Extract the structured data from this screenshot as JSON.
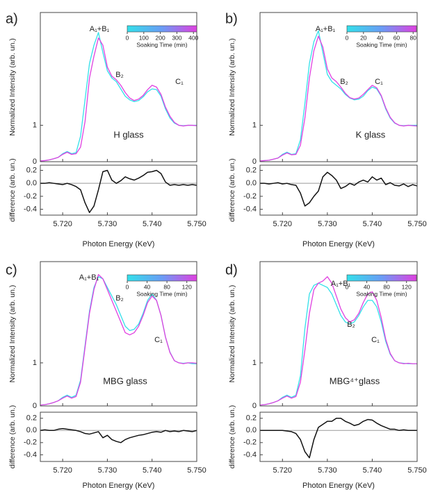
{
  "chart_data": [
    {
      "type": "line",
      "panel_label": "a)",
      "ylabel": "Normalized Intensity (arb. un.)",
      "sample_label": "H glass",
      "annotations": [
        "A₁+B₁",
        "B₂",
        "C₁"
      ],
      "x": [
        5.715,
        5.716,
        5.717,
        5.718,
        5.719,
        5.72,
        5.721,
        5.722,
        5.723,
        5.724,
        5.725,
        5.726,
        5.727,
        5.728,
        5.729,
        5.73,
        5.731,
        5.732,
        5.733,
        5.734,
        5.735,
        5.736,
        5.737,
        5.738,
        5.739,
        5.74,
        5.741,
        5.742,
        5.743,
        5.744,
        5.745,
        5.746,
        5.747,
        5.748,
        5.749,
        5.75
      ],
      "series": [
        {
          "color": "#33e0ea",
          "values": [
            0.02,
            0.03,
            0.05,
            0.08,
            0.12,
            0.22,
            0.28,
            0.22,
            0.25,
            0.7,
            1.7,
            2.7,
            3.2,
            3.55,
            3.0,
            2.5,
            2.3,
            2.2,
            2.0,
            1.8,
            1.7,
            1.65,
            1.68,
            1.78,
            1.92,
            2.0,
            1.98,
            1.8,
            1.45,
            1.2,
            1.06,
            1.0,
            0.99,
            1.0,
            1.0,
            1.0
          ]
        },
        {
          "color": "#e040e0",
          "values": [
            0.02,
            0.03,
            0.05,
            0.08,
            0.12,
            0.2,
            0.26,
            0.2,
            0.22,
            0.4,
            1.1,
            2.3,
            2.9,
            3.4,
            3.2,
            2.6,
            2.35,
            2.25,
            2.1,
            1.9,
            1.75,
            1.68,
            1.72,
            1.82,
            1.98,
            2.1,
            2.05,
            1.85,
            1.5,
            1.25,
            1.08,
            1.0,
            0.98,
            1.0,
            1.0,
            0.99
          ]
        }
      ],
      "xlim": [
        5.715,
        5.75
      ],
      "ylim": [
        0,
        4.1
      ],
      "yticks": [
        0,
        1
      ],
      "xticks": [
        5.72,
        5.73,
        5.74,
        5.75
      ],
      "colorbar": {
        "label": "Soaking Time (min)",
        "lim": [
          0,
          420
        ],
        "ticks": [
          0,
          100,
          200,
          300,
          400
        ],
        "colors": [
          "#33e0ea",
          "#6a9cf5",
          "#e040e0"
        ]
      }
    },
    {
      "type": "line",
      "ylabel": "difference (arb. un.)",
      "xlabel": "Photon Energy (KeV)",
      "color": "#111111",
      "hline": 0,
      "x": [
        5.715,
        5.716,
        5.717,
        5.718,
        5.719,
        5.72,
        5.721,
        5.722,
        5.723,
        5.724,
        5.725,
        5.726,
        5.727,
        5.728,
        5.729,
        5.73,
        5.731,
        5.732,
        5.733,
        5.734,
        5.735,
        5.736,
        5.737,
        5.738,
        5.739,
        5.74,
        5.741,
        5.742,
        5.743,
        5.744,
        5.745,
        5.746,
        5.747,
        5.748,
        5.749,
        5.75
      ],
      "values": [
        0,
        0,
        0.01,
        0,
        -0.01,
        -0.02,
        0,
        -0.02,
        -0.05,
        -0.1,
        -0.3,
        -0.45,
        -0.35,
        -0.1,
        0.18,
        0.2,
        0.05,
        0,
        0.04,
        0.1,
        0.07,
        0.05,
        0.08,
        0.12,
        0.17,
        0.18,
        0.2,
        0.15,
        0.02,
        -0.03,
        -0.02,
        -0.03,
        -0.02,
        -0.03,
        -0.02,
        -0.03
      ],
      "xlim": [
        5.715,
        5.75
      ],
      "ylim": [
        -0.49,
        0.28
      ],
      "yticks": [
        -0.4,
        -0.2,
        {
          "value": 0,
          "label": "0.0"
        },
        0.2
      ],
      "xticks": [
        {
          "value": 5.72,
          "label": "5.720"
        },
        {
          "value": 5.73,
          "label": "5.730"
        },
        {
          "value": 5.74,
          "label": "5.740"
        },
        {
          "value": 5.75,
          "label": "5.750"
        }
      ]
    },
    {
      "type": "line",
      "panel_label": "b)",
      "ylabel": "Normalized Intensity (arb. un.)",
      "sample_label": "K glass",
      "annotations": [
        "A₁+B₁",
        "B₂",
        "C₁"
      ],
      "x": [
        5.715,
        5.716,
        5.717,
        5.718,
        5.719,
        5.72,
        5.721,
        5.722,
        5.723,
        5.724,
        5.725,
        5.726,
        5.727,
        5.728,
        5.729,
        5.73,
        5.731,
        5.732,
        5.733,
        5.734,
        5.735,
        5.736,
        5.737,
        5.738,
        5.739,
        5.74,
        5.741,
        5.742,
        5.743,
        5.744,
        5.745,
        5.746,
        5.747,
        5.748,
        5.749,
        5.75
      ],
      "series": [
        {
          "color": "#33e0ea",
          "values": [
            0.02,
            0.03,
            0.04,
            0.07,
            0.1,
            0.2,
            0.26,
            0.2,
            0.22,
            0.6,
            1.6,
            2.7,
            3.3,
            3.6,
            3.0,
            2.4,
            2.2,
            2.1,
            2.0,
            1.85,
            1.75,
            1.7,
            1.72,
            1.8,
            1.95,
            2.05,
            2.0,
            1.8,
            1.45,
            1.2,
            1.06,
            1.0,
            0.99,
            1.0,
            1.0,
            1.0
          ]
        },
        {
          "color": "#e040e0",
          "values": [
            0.02,
            0.03,
            0.04,
            0.07,
            0.1,
            0.18,
            0.24,
            0.19,
            0.2,
            0.45,
            1.2,
            2.3,
            3.05,
            3.45,
            3.15,
            2.55,
            2.3,
            2.2,
            2.05,
            1.88,
            1.76,
            1.72,
            1.75,
            1.85,
            1.98,
            2.1,
            2.03,
            1.82,
            1.48,
            1.22,
            1.07,
            1.0,
            0.98,
            1.0,
            0.99,
            0.98
          ]
        }
      ],
      "xlim": [
        5.715,
        5.75
      ],
      "ylim": [
        0,
        4.1
      ],
      "yticks": [
        0,
        1
      ],
      "xticks": [
        5.72,
        5.73,
        5.74,
        5.75
      ],
      "colorbar": {
        "label": "Soaking Time (min)",
        "lim": [
          0,
          84
        ],
        "ticks": [
          0,
          20,
          40,
          60,
          80
        ],
        "colors": [
          "#33e0ea",
          "#6a9cf5",
          "#e040e0"
        ]
      }
    },
    {
      "type": "line",
      "ylabel": "difference (arb. un.)",
      "xlabel": "Photon Energy (KeV)",
      "color": "#111111",
      "hline": 0,
      "x": [
        5.715,
        5.716,
        5.717,
        5.718,
        5.719,
        5.72,
        5.721,
        5.722,
        5.723,
        5.724,
        5.725,
        5.726,
        5.727,
        5.728,
        5.729,
        5.73,
        5.731,
        5.732,
        5.733,
        5.734,
        5.735,
        5.736,
        5.737,
        5.738,
        5.739,
        5.74,
        5.741,
        5.742,
        5.743,
        5.744,
        5.745,
        5.746,
        5.747,
        5.748,
        5.749,
        5.75
      ],
      "values": [
        0,
        0,
        -0.01,
        0,
        0.01,
        -0.01,
        0,
        -0.02,
        -0.03,
        -0.15,
        -0.35,
        -0.3,
        -0.2,
        -0.12,
        0.1,
        0.17,
        0.12,
        0.05,
        -0.08,
        -0.05,
        0,
        -0.03,
        0.02,
        0.05,
        0.02,
        0.1,
        0.05,
        0.08,
        -0.02,
        0.01,
        -0.03,
        -0.04,
        -0.01,
        -0.05,
        -0.02,
        -0.04
      ],
      "xlim": [
        5.715,
        5.75
      ],
      "ylim": [
        -0.49,
        0.28
      ],
      "yticks": [
        -0.4,
        -0.2,
        {
          "value": 0,
          "label": "0.0"
        },
        0.2
      ],
      "xticks": [
        {
          "value": 5.72,
          "label": "5.720"
        },
        {
          "value": 5.73,
          "label": "5.730"
        },
        {
          "value": 5.74,
          "label": "5.740"
        },
        {
          "value": 5.75,
          "label": "5.750"
        }
      ]
    },
    {
      "type": "line",
      "panel_label": "c)",
      "ylabel": "Normalized Intensity (arb. un.)",
      "sample_label": "MBG glass",
      "annotations": [
        "A₁+B₁",
        "B₂",
        "C₁"
      ],
      "x": [
        5.715,
        5.716,
        5.717,
        5.718,
        5.719,
        5.72,
        5.721,
        5.722,
        5.723,
        5.724,
        5.725,
        5.726,
        5.727,
        5.728,
        5.729,
        5.73,
        5.731,
        5.732,
        5.733,
        5.734,
        5.735,
        5.736,
        5.737,
        5.738,
        5.739,
        5.74,
        5.741,
        5.742,
        5.743,
        5.744,
        5.745,
        5.746,
        5.747,
        5.748,
        5.749,
        5.75
      ],
      "series": [
        {
          "color": "#33e0ea",
          "values": [
            0.02,
            0.03,
            0.05,
            0.08,
            0.12,
            0.2,
            0.25,
            0.2,
            0.25,
            0.6,
            1.4,
            2.2,
            2.75,
            3.0,
            2.95,
            2.75,
            2.55,
            2.35,
            2.1,
            1.85,
            1.75,
            1.78,
            1.9,
            2.15,
            2.45,
            2.6,
            2.45,
            2.1,
            1.6,
            1.25,
            1.05,
            1.0,
            0.99,
            1.0,
            0.98,
            0.98
          ]
        },
        {
          "color": "#e040e0",
          "values": [
            0.02,
            0.03,
            0.05,
            0.08,
            0.12,
            0.18,
            0.23,
            0.18,
            0.22,
            0.55,
            1.35,
            2.15,
            2.7,
            3.05,
            2.95,
            2.7,
            2.45,
            2.2,
            1.95,
            1.7,
            1.65,
            1.7,
            1.85,
            2.1,
            2.4,
            2.55,
            2.45,
            2.1,
            1.6,
            1.24,
            1.05,
            1.0,
            0.98,
            1.0,
            1.0,
            0.99
          ]
        }
      ],
      "xlim": [
        5.715,
        5.75
      ],
      "ylim": [
        0,
        3.35
      ],
      "yticks": [
        0,
        1
      ],
      "xticks": [
        5.72,
        5.73,
        5.74,
        5.75
      ],
      "colorbar": {
        "label": "Soaking Time (min)",
        "lim": [
          0,
          140
        ],
        "ticks": [
          0,
          40,
          80,
          120
        ],
        "colors": [
          "#33e0ea",
          "#6a9cf5",
          "#e040e0"
        ]
      }
    },
    {
      "type": "line",
      "ylabel": "difference (arb. un.)",
      "xlabel": "Photon Energy (KeV)",
      "color": "#111111",
      "hline": 0,
      "x": [
        5.715,
        5.716,
        5.717,
        5.718,
        5.719,
        5.72,
        5.721,
        5.722,
        5.723,
        5.724,
        5.725,
        5.726,
        5.727,
        5.728,
        5.729,
        5.73,
        5.731,
        5.732,
        5.733,
        5.734,
        5.735,
        5.736,
        5.737,
        5.738,
        5.739,
        5.74,
        5.741,
        5.742,
        5.743,
        5.744,
        5.745,
        5.746,
        5.747,
        5.748,
        5.749,
        5.75
      ],
      "values": [
        0,
        0.01,
        0,
        0,
        0.02,
        0.03,
        0.02,
        0.01,
        0,
        -0.02,
        -0.05,
        -0.06,
        -0.04,
        -0.02,
        -0.12,
        -0.08,
        -0.15,
        -0.18,
        -0.2,
        -0.15,
        -0.12,
        -0.1,
        -0.08,
        -0.07,
        -0.05,
        -0.03,
        -0.02,
        -0.03,
        0,
        -0.02,
        -0.01,
        -0.02,
        0,
        -0.01,
        -0.02,
        0
      ],
      "xlim": [
        5.715,
        5.75
      ],
      "ylim": [
        -0.51,
        0.3
      ],
      "yticks": [
        -0.4,
        -0.2,
        {
          "value": 0,
          "label": "0.0"
        },
        0.2
      ],
      "xticks": [
        {
          "value": 5.72,
          "label": "5.720"
        },
        {
          "value": 5.73,
          "label": "5.730"
        },
        {
          "value": 5.74,
          "label": "5.740"
        },
        {
          "value": 5.75,
          "label": "5.750"
        }
      ]
    },
    {
      "type": "line",
      "panel_label": "d)",
      "ylabel": "Normalized Intensity (arb. un.)",
      "sample_label": "MBG⁴⁺glass",
      "annotations": [
        "A₁+B₁",
        "B₂",
        "C₁"
      ],
      "x": [
        5.715,
        5.716,
        5.717,
        5.718,
        5.719,
        5.72,
        5.721,
        5.722,
        5.723,
        5.724,
        5.725,
        5.726,
        5.727,
        5.728,
        5.729,
        5.73,
        5.731,
        5.732,
        5.733,
        5.734,
        5.735,
        5.736,
        5.737,
        5.738,
        5.739,
        5.74,
        5.741,
        5.742,
        5.743,
        5.744,
        5.745,
        5.746,
        5.747,
        5.748,
        5.749,
        5.75
      ],
      "series": [
        {
          "color": "#33e0ea",
          "values": [
            0.02,
            0.03,
            0.05,
            0.08,
            0.12,
            0.2,
            0.25,
            0.2,
            0.25,
            0.7,
            1.8,
            2.6,
            2.8,
            2.85,
            2.8,
            2.75,
            2.6,
            2.35,
            2.1,
            1.95,
            1.9,
            1.95,
            2.1,
            2.3,
            2.45,
            2.45,
            2.3,
            1.95,
            1.5,
            1.2,
            1.05,
            1.0,
            0.99,
            0.98,
            0.98,
            0.98
          ]
        },
        {
          "color": "#e040e0",
          "values": [
            0.02,
            0.03,
            0.05,
            0.08,
            0.12,
            0.18,
            0.23,
            0.18,
            0.22,
            0.55,
            1.3,
            2.15,
            2.7,
            2.85,
            2.9,
            3.0,
            2.85,
            2.55,
            2.25,
            2.05,
            1.95,
            2.0,
            2.15,
            2.4,
            2.6,
            2.65,
            2.45,
            2.05,
            1.55,
            1.22,
            1.05,
            1.0,
            0.98,
            0.99,
            0.98,
            0.98
          ]
        }
      ],
      "xlim": [
        5.715,
        5.75
      ],
      "ylim": [
        0,
        3.35
      ],
      "yticks": [
        0,
        1
      ],
      "xticks": [
        5.72,
        5.73,
        5.74,
        5.75
      ],
      "colorbar": {
        "label": "Soaking Time (min)",
        "lim": [
          0,
          140
        ],
        "ticks": [
          0,
          40,
          80,
          120
        ],
        "colors": [
          "#33e0ea",
          "#6a9cf5",
          "#e040e0"
        ]
      }
    },
    {
      "type": "line",
      "ylabel": "difference (arb. un.)",
      "xlabel": "Photon Energy (KeV)",
      "color": "#111111",
      "hline": 0,
      "x": [
        5.715,
        5.716,
        5.717,
        5.718,
        5.719,
        5.72,
        5.721,
        5.722,
        5.723,
        5.724,
        5.725,
        5.726,
        5.727,
        5.728,
        5.729,
        5.73,
        5.731,
        5.732,
        5.733,
        5.734,
        5.735,
        5.736,
        5.737,
        5.738,
        5.739,
        5.74,
        5.741,
        5.742,
        5.743,
        5.744,
        5.745,
        5.746,
        5.747,
        5.748,
        5.749,
        5.75
      ],
      "values": [
        0,
        0,
        0,
        0,
        0,
        0,
        -0.01,
        -0.02,
        -0.05,
        -0.15,
        -0.35,
        -0.45,
        -0.15,
        0.05,
        0.1,
        0.15,
        0.15,
        0.2,
        0.2,
        0.15,
        0.12,
        0.08,
        0.1,
        0.15,
        0.18,
        0.17,
        0.12,
        0.08,
        0.05,
        0.02,
        0.02,
        0,
        0.01,
        0,
        0,
        0
      ],
      "xlim": [
        5.715,
        5.75
      ],
      "ylim": [
        -0.51,
        0.3
      ],
      "yticks": [
        -0.4,
        -0.2,
        {
          "value": 0,
          "label": "0.0"
        },
        0.2
      ],
      "xticks": [
        {
          "value": 5.72,
          "label": "5.720"
        },
        {
          "value": 5.73,
          "label": "5.730"
        },
        {
          "value": 5.74,
          "label": "5.740"
        },
        {
          "value": 5.75,
          "label": "5.750"
        }
      ]
    }
  ]
}
